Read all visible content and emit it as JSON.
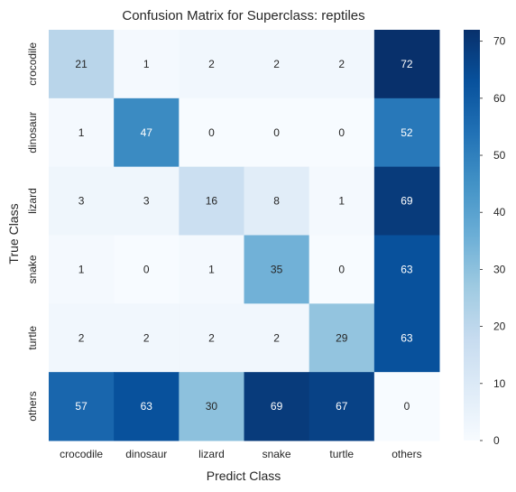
{
  "chart_data": {
    "type": "heatmap",
    "title": "Confusion Matrix for Superclass: reptiles",
    "xlabel": "Predict Class",
    "ylabel": "True Class",
    "x_categories": [
      "crocodile",
      "dinosaur",
      "lizard",
      "snake",
      "turtle",
      "others"
    ],
    "y_categories": [
      "crocodile",
      "dinosaur",
      "lizard",
      "snake",
      "turtle",
      "others"
    ],
    "values": [
      [
        21,
        1,
        2,
        2,
        2,
        72
      ],
      [
        1,
        47,
        0,
        0,
        0,
        52
      ],
      [
        3,
        3,
        16,
        8,
        1,
        69
      ],
      [
        1,
        0,
        1,
        35,
        0,
        63
      ],
      [
        2,
        2,
        2,
        2,
        29,
        63
      ],
      [
        57,
        63,
        30,
        69,
        67,
        0
      ]
    ],
    "colorbar": {
      "colormap": "Blues",
      "min": 0,
      "max": 72,
      "ticks": [
        "0",
        "10",
        "20",
        "30",
        "40",
        "50",
        "60",
        "70"
      ]
    },
    "grid": false
  }
}
